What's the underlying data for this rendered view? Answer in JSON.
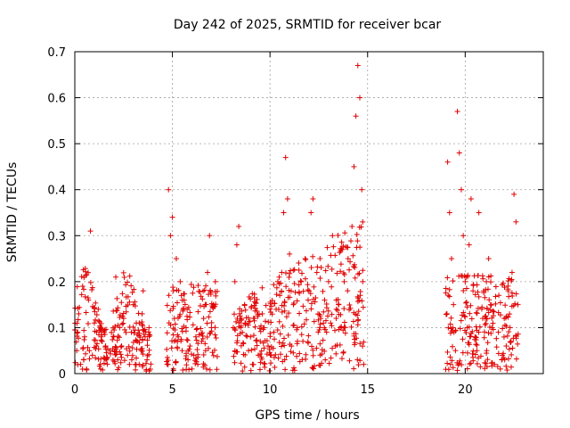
{
  "chart_data": {
    "type": "scatter",
    "title": "Day 242 of 2025, SRMTID for receiver bcar",
    "xlabel": "GPS time / hours",
    "ylabel": "SRMTID / TECUs",
    "xlim": [
      0,
      24
    ],
    "ylim": [
      0,
      0.7
    ],
    "xticks": [
      "0",
      "5",
      "10",
      "15",
      "20"
    ],
    "yticks": [
      "0",
      "0.1",
      "0.2",
      "0.3",
      "0.4",
      "0.5",
      "0.6",
      "0.7"
    ],
    "marker": "plus",
    "color": "#e00000",
    "grid": true,
    "coverage_hours": [
      [
        0.0,
        3.9
      ],
      [
        4.7,
        7.3
      ],
      [
        8.1,
        14.8
      ],
      [
        19.0,
        22.8
      ]
    ],
    "series": [
      {
        "name": "SRMTID",
        "points": [
          [
            0.1,
            0.05
          ],
          [
            0.2,
            0.13
          ],
          [
            0.3,
            0.02
          ],
          [
            0.4,
            0.19
          ],
          [
            0.5,
            0.08
          ],
          [
            0.6,
            0.01
          ],
          [
            0.7,
            0.16
          ],
          [
            0.8,
            0.31
          ],
          [
            0.9,
            0.04
          ],
          [
            1.0,
            0.11
          ],
          [
            1.1,
            0.06
          ],
          [
            1.2,
            0.14
          ],
          [
            1.3,
            0.02
          ],
          [
            1.5,
            0.09
          ],
          [
            1.6,
            0.03
          ],
          [
            1.8,
            0.05
          ],
          [
            2.0,
            0.08
          ],
          [
            2.1,
            0.21
          ],
          [
            2.2,
            0.03
          ],
          [
            2.4,
            0.06
          ],
          [
            2.5,
            0.12
          ],
          [
            2.7,
            0.04
          ],
          [
            2.9,
            0.09
          ],
          [
            3.0,
            0.15
          ],
          [
            3.1,
            0.02
          ],
          [
            3.2,
            0.07
          ],
          [
            3.3,
            0.11
          ],
          [
            3.4,
            0.05
          ],
          [
            3.5,
            0.18
          ],
          [
            3.6,
            0.08
          ],
          [
            3.7,
            0.03
          ],
          [
            3.8,
            0.1
          ],
          [
            0.15,
            0.09
          ],
          [
            0.45,
            0.03
          ],
          [
            1.4,
            0.07
          ],
          [
            2.3,
            0.1
          ],
          [
            2.8,
            0.02
          ],
          [
            3.45,
            0.13
          ],
          [
            4.8,
            0.4
          ],
          [
            4.9,
            0.3
          ],
          [
            5.0,
            0.34
          ],
          [
            5.1,
            0.12
          ],
          [
            5.2,
            0.25
          ],
          [
            5.3,
            0.08
          ],
          [
            5.4,
            0.2
          ],
          [
            5.5,
            0.05
          ],
          [
            5.6,
            0.16
          ],
          [
            5.7,
            0.1
          ],
          [
            5.8,
            0.03
          ],
          [
            5.9,
            0.06
          ],
          [
            6.0,
            0.01
          ],
          [
            6.1,
            0.04
          ],
          [
            6.3,
            0.02
          ],
          [
            6.5,
            0.07
          ],
          [
            6.6,
            0.12
          ],
          [
            6.7,
            0.05
          ],
          [
            6.8,
            0.22
          ],
          [
            6.9,
            0.3
          ],
          [
            7.0,
            0.1
          ],
          [
            7.1,
            0.15
          ],
          [
            7.2,
            0.2
          ],
          [
            5.05,
            0.18
          ],
          [
            6.2,
            0.08
          ],
          [
            6.75,
            0.01
          ],
          [
            8.2,
            0.2
          ],
          [
            8.3,
            0.28
          ],
          [
            8.4,
            0.32
          ],
          [
            8.5,
            0.1
          ],
          [
            8.7,
            0.15
          ],
          [
            8.9,
            0.05
          ],
          [
            9.0,
            0.08
          ],
          [
            9.2,
            0.12
          ],
          [
            9.4,
            0.04
          ],
          [
            9.5,
            0.07
          ],
          [
            9.7,
            0.1
          ],
          [
            9.9,
            0.06
          ],
          [
            10.0,
            0.14
          ],
          [
            10.2,
            0.09
          ],
          [
            10.4,
            0.2
          ],
          [
            10.5,
            0.17
          ],
          [
            10.6,
            0.22
          ],
          [
            10.7,
            0.35
          ],
          [
            10.8,
            0.47
          ],
          [
            10.9,
            0.38
          ],
          [
            11.0,
            0.26
          ],
          [
            11.2,
            0.15
          ],
          [
            11.4,
            0.1
          ],
          [
            11.6,
            0.2
          ],
          [
            11.8,
            0.25
          ],
          [
            12.0,
            0.18
          ],
          [
            12.1,
            0.35
          ],
          [
            12.2,
            0.38
          ],
          [
            12.4,
            0.22
          ],
          [
            12.6,
            0.12
          ],
          [
            12.8,
            0.16
          ],
          [
            13.0,
            0.2
          ],
          [
            13.2,
            0.3
          ],
          [
            13.4,
            0.14
          ],
          [
            13.6,
            0.1
          ],
          [
            13.8,
            0.2
          ],
          [
            14.0,
            0.25
          ],
          [
            14.2,
            0.32
          ],
          [
            14.3,
            0.45
          ],
          [
            14.4,
            0.56
          ],
          [
            14.5,
            0.67
          ],
          [
            14.6,
            0.6
          ],
          [
            14.7,
            0.4
          ],
          [
            14.75,
            0.2
          ],
          [
            14.8,
            0.02
          ],
          [
            9.1,
            0.02
          ],
          [
            9.6,
            0.13
          ],
          [
            11.1,
            0.06
          ],
          [
            12.9,
            0.09
          ],
          [
            13.7,
            0.27
          ],
          [
            19.1,
            0.46
          ],
          [
            19.2,
            0.35
          ],
          [
            19.3,
            0.25
          ],
          [
            19.4,
            0.15
          ],
          [
            19.5,
            0.05
          ],
          [
            19.6,
            0.57
          ],
          [
            19.7,
            0.48
          ],
          [
            19.8,
            0.4
          ],
          [
            19.9,
            0.3
          ],
          [
            20.0,
            0.2
          ],
          [
            20.1,
            0.1
          ],
          [
            20.2,
            0.28
          ],
          [
            20.3,
            0.38
          ],
          [
            20.4,
            0.18
          ],
          [
            20.5,
            0.08
          ],
          [
            20.7,
            0.35
          ],
          [
            20.9,
            0.12
          ],
          [
            21.1,
            0.05
          ],
          [
            21.3,
            0.15
          ],
          [
            21.5,
            0.02
          ],
          [
            21.7,
            0.09
          ],
          [
            21.9,
            0.04
          ],
          [
            22.0,
            0.12
          ],
          [
            22.1,
            0.06
          ],
          [
            22.2,
            0.18
          ],
          [
            22.3,
            0.1
          ],
          [
            22.4,
            0.22
          ],
          [
            22.5,
            0.39
          ],
          [
            22.6,
            0.33
          ],
          [
            22.7,
            0.15
          ],
          [
            19.25,
            0.02
          ],
          [
            20.6,
            0.05
          ],
          [
            21.2,
            0.25
          ],
          [
            21.8,
            0.01
          ],
          [
            22.35,
            0.07
          ]
        ]
      }
    ]
  }
}
